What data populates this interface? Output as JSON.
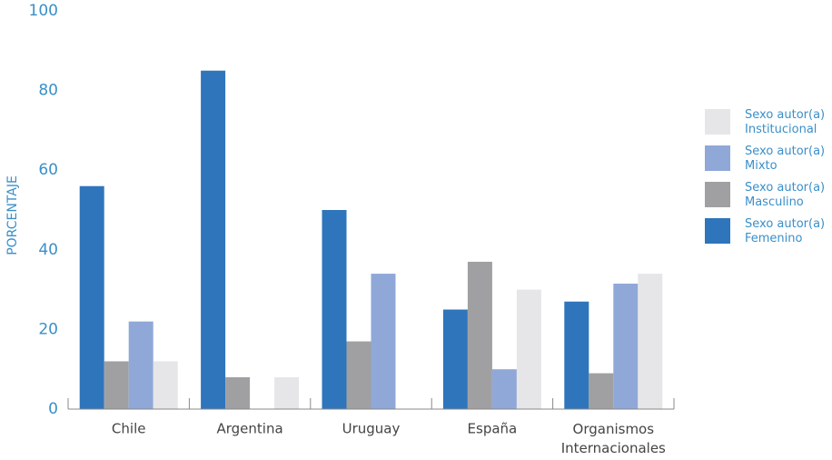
{
  "chart_data": {
    "type": "bar",
    "y_label": "PORCENTAJE",
    "categories": [
      "Chile",
      "Argentina",
      "Uruguay",
      "España",
      "Organismos Internacionales"
    ],
    "series": [
      {
        "name": "Sexo autor(a) Femenino",
        "color": "#2e75bb",
        "values": [
          56,
          85,
          50,
          25,
          27
        ]
      },
      {
        "name": "Sexo autor(a) Masculino",
        "color": "#a0a0a2",
        "values": [
          12,
          8,
          17,
          37,
          9
        ]
      },
      {
        "name": "Sexo autor(a) Mixto",
        "color": "#8fa8d8",
        "values": [
          22,
          0,
          34,
          10,
          31.5
        ]
      },
      {
        "name": "Sexo autor(a) Institucional",
        "color": "#e6e6e8",
        "values": [
          12,
          8,
          0,
          30,
          34
        ]
      }
    ],
    "ylim": [
      0,
      100
    ],
    "yticks": [
      0,
      20,
      40,
      60,
      80,
      100
    ],
    "grid": false,
    "legend": "right"
  }
}
